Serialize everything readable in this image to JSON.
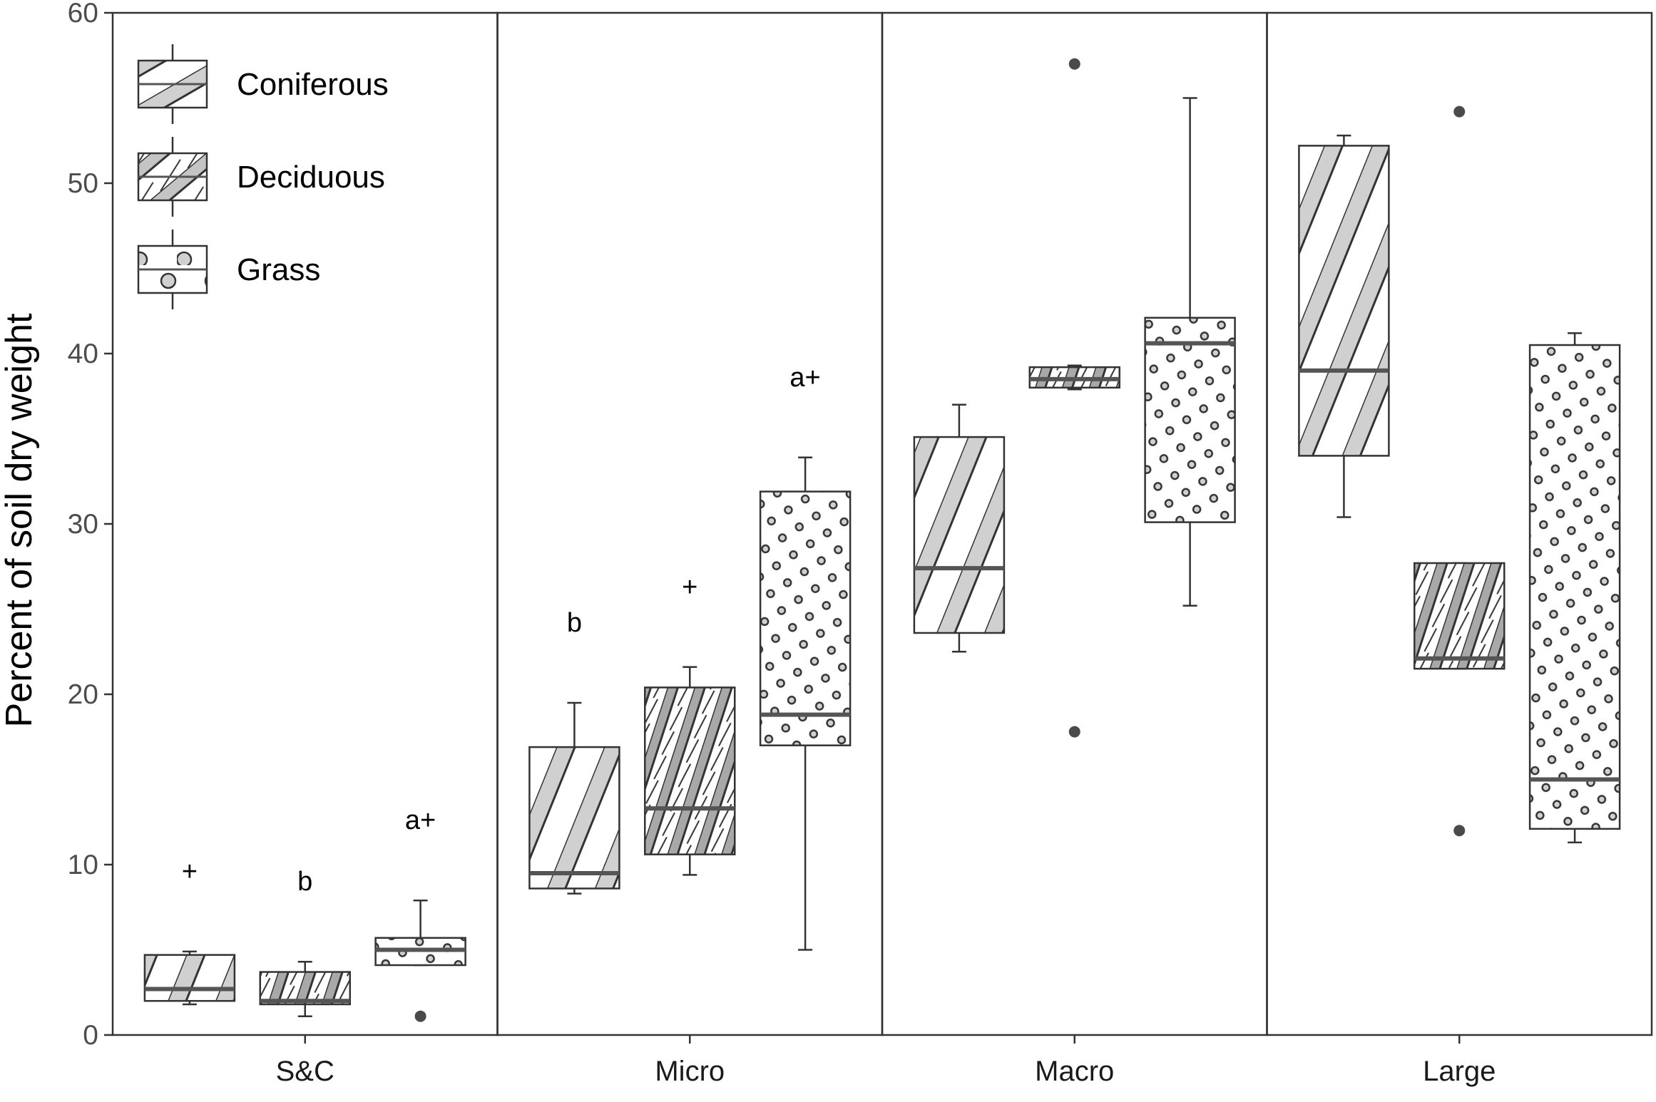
{
  "chart_data": {
    "type": "boxplot",
    "ylabel": "Percent of soil dry weight",
    "ylim": [
      0,
      60
    ],
    "yticks": [
      0,
      10,
      20,
      30,
      40,
      50,
      60
    ],
    "grid": false,
    "legend_position": "top-left",
    "categories": [
      "S&C",
      "Micro",
      "Macro",
      "Large"
    ],
    "series": [
      {
        "name": "Coniferous",
        "pattern": "stripe",
        "boxes": [
          {
            "min": 1.8,
            "q1": 2.0,
            "median": 2.7,
            "q3": 4.7,
            "max": 4.9,
            "outliers": [],
            "annotation": "+"
          },
          {
            "min": 8.3,
            "q1": 8.6,
            "median": 9.5,
            "q3": 16.9,
            "max": 19.5,
            "outliers": [],
            "annotation": "b"
          },
          {
            "min": 22.5,
            "q1": 23.6,
            "median": 27.4,
            "q3": 35.1,
            "max": 37.0,
            "outliers": [],
            "annotation": ""
          },
          {
            "min": 30.4,
            "q1": 34.0,
            "median": 39.0,
            "q3": 52.2,
            "max": 52.8,
            "outliers": [],
            "annotation": ""
          }
        ]
      },
      {
        "name": "Deciduous",
        "pattern": "crosshatch",
        "boxes": [
          {
            "min": 1.1,
            "q1": 1.8,
            "median": 2.0,
            "q3": 3.7,
            "max": 4.3,
            "outliers": [],
            "annotation": "b"
          },
          {
            "min": 9.4,
            "q1": 10.6,
            "median": 13.3,
            "q3": 20.4,
            "max": 21.6,
            "outliers": [],
            "annotation": "+"
          },
          {
            "min": 37.9,
            "q1": 38.0,
            "median": 38.5,
            "q3": 39.2,
            "max": 39.3,
            "outliers": [
              17.8,
              57.0
            ],
            "annotation": ""
          },
          {
            "min": 21.5,
            "q1": 21.5,
            "median": 22.1,
            "q3": 27.7,
            "max": 27.7,
            "outliers": [
              12.0,
              54.2
            ],
            "annotation": ""
          }
        ]
      },
      {
        "name": "Grass",
        "pattern": "dots",
        "boxes": [
          {
            "min": 4.1,
            "q1": 4.1,
            "median": 5.0,
            "q3": 5.7,
            "max": 7.9,
            "outliers": [
              1.1
            ],
            "annotation": "a+"
          },
          {
            "min": 5.0,
            "q1": 17.0,
            "median": 18.8,
            "q3": 31.9,
            "max": 33.9,
            "outliers": [],
            "annotation": "a+"
          },
          {
            "min": 25.2,
            "q1": 30.1,
            "median": 40.6,
            "q3": 42.1,
            "max": 55.0,
            "outliers": [],
            "annotation": ""
          },
          {
            "min": 11.3,
            "q1": 12.1,
            "median": 15.0,
            "q3": 40.5,
            "max": 41.2,
            "outliers": [],
            "annotation": ""
          }
        ]
      }
    ]
  }
}
